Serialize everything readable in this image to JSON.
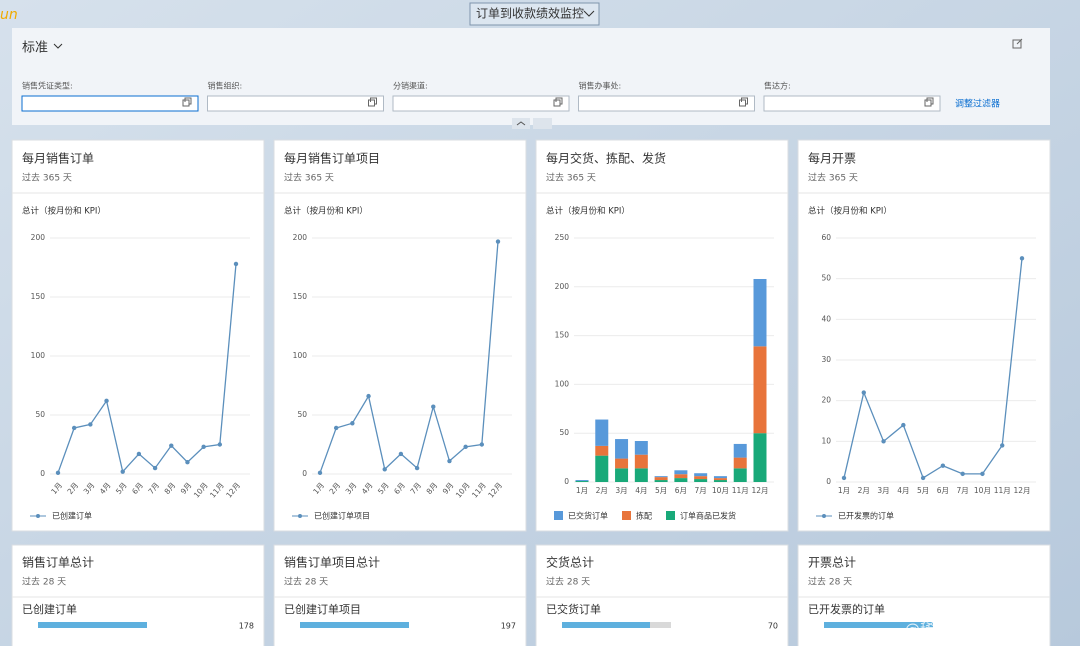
{
  "header": {
    "logo": "un",
    "title": "订单到收款绩效监控"
  },
  "filter": {
    "variant": "标准",
    "fields": [
      "销售凭证类型:",
      "销售组织:",
      "分销渠道:",
      "销售办事处:",
      "售达方:"
    ],
    "adjust": "调整过滤器"
  },
  "cards": [
    {
      "title": "每月销售订单",
      "subtitle": "过去 365 天",
      "chart_title": "总计（按月份和 KPI）",
      "chart": {
        "type": "line",
        "categories": [
          "1月",
          "2月",
          "3月",
          "4月",
          "5月",
          "6月",
          "7月",
          "8月",
          "9月",
          "10月",
          "11月",
          "12月"
        ],
        "series": [
          {
            "name": "已创建订单",
            "color": "#5b8fbc",
            "values": [
              1,
              39,
              42,
              62,
              2,
              17,
              5,
              24,
              10,
              23,
              25,
              178
            ]
          }
        ],
        "ylim": [
          0,
          200
        ],
        "yticks": [
          0,
          50,
          100,
          150,
          200
        ],
        "grid": true
      }
    },
    {
      "title": "每月销售订单项目",
      "subtitle": "过去 365 天",
      "chart_title": "总计（按月份和 KPI）",
      "chart": {
        "type": "line",
        "categories": [
          "1月",
          "2月",
          "3月",
          "4月",
          "5月",
          "6月",
          "7月",
          "8月",
          "9月",
          "10月",
          "11月",
          "12月"
        ],
        "series": [
          {
            "name": "已创建订单项目",
            "color": "#5b8fbc",
            "values": [
              1,
              39,
              43,
              66,
              4,
              17,
              5,
              57,
              11,
              23,
              25,
              197
            ]
          }
        ],
        "ylim": [
          0,
          200
        ],
        "yticks": [
          0,
          50,
          100,
          150,
          200
        ],
        "grid": true
      }
    },
    {
      "title": "每月交货、拣配、发货",
      "subtitle": "过去 365 天",
      "chart_title": "总计（按月份和 KPI）",
      "chart": {
        "type": "stacked_bar",
        "categories": [
          "1月",
          "2月",
          "3月",
          "4月",
          "5月",
          "6月",
          "7月",
          "10月",
          "11月",
          "12月"
        ],
        "series": [
          {
            "name": "订单商品已发货",
            "color": "#19a979",
            "values": [
              1,
              27,
              14,
              14,
              2,
              4,
              3,
              2,
              14,
              50
            ]
          },
          {
            "name": "拣配",
            "color": "#e8743b",
            "values": [
              0,
              10,
              10,
              14,
              3,
              4,
              3,
              2,
              11,
              89
            ]
          },
          {
            "name": "已交货订单",
            "color": "#5899da",
            "values": [
              1,
              27,
              20,
              14,
              1,
              4,
              3,
              2,
              14,
              69
            ]
          }
        ],
        "ylim": [
          0,
          250
        ],
        "yticks": [
          0,
          50,
          100,
          150,
          200,
          250
        ],
        "grid": true
      }
    },
    {
      "title": "每月开票",
      "subtitle": "过去 365 天",
      "chart_title": "总计（按月份和 KPI）",
      "chart": {
        "type": "line",
        "categories": [
          "1月",
          "2月",
          "3月",
          "4月",
          "5月",
          "6月",
          "7月",
          "10月",
          "11月",
          "12月"
        ],
        "series": [
          {
            "name": "已开发票的订单",
            "color": "#5b8fbc",
            "values": [
              1,
              22,
              10,
              14,
              1,
              4,
              2,
              2,
              9,
              55
            ]
          }
        ],
        "ylim": [
          0,
          60
        ],
        "yticks": [
          0,
          10,
          20,
          30,
          40,
          50,
          60
        ],
        "grid": true
      }
    }
  ],
  "tiles": [
    {
      "title": "销售订单总计",
      "subtitle": "过去 28 天",
      "label": "已创建订单",
      "value": 178
    },
    {
      "title": "销售订单项目总计",
      "subtitle": "过去 28 天",
      "label": "已创建订单项目",
      "value": 197
    },
    {
      "title": "交货总计",
      "subtitle": "过去 28 天",
      "label": "已交货订单",
      "value": 70
    },
    {
      "title": "开票总计",
      "subtitle": "过去 28 天",
      "label": "已开发票的订单"
    }
  ],
  "watermark": "@稀土掘金技术社区"
}
